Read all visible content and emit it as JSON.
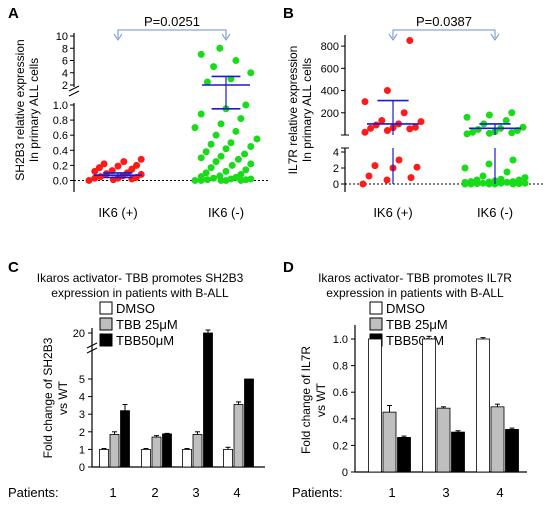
{
  "chart_data": [
    {
      "panel": "A",
      "type": "scatter",
      "ylabel": "SH2B3 relative expression\nIn primary ALL cells",
      "categories": [
        "IK6 (+)",
        "IK6 (-)"
      ],
      "axis_break": true,
      "ylim_lower": [
        -0.1,
        1.0
      ],
      "ylim_upper": [
        2,
        10
      ],
      "yticks_lower": [
        "0.0",
        "0.2",
        "0.4",
        "0.6",
        "0.8",
        "1.0"
      ],
      "yticks_upper": [
        "2",
        "4",
        "6",
        "8",
        "10"
      ],
      "annotation": "P=0.0251",
      "series": [
        {
          "category": "IK6 (+)",
          "color": "#ff1a1a",
          "mean": 0.07,
          "sem_low": 0.04,
          "sem_high": 0.1,
          "values": [
            0.0,
            0.01,
            0.02,
            0.03,
            0.03,
            0.04,
            0.05,
            0.06,
            0.08,
            0.09,
            0.1,
            0.12,
            0.13,
            0.15,
            0.17,
            0.19,
            0.2,
            0.22,
            0.25,
            0.28
          ]
        },
        {
          "category": "IK6 (-)",
          "color": "#1adb1a",
          "mean": 2.0,
          "sem_low": 0.95,
          "sem_high": 3.4,
          "values": [
            0.0,
            0.0,
            0.0,
            0.0,
            0.0,
            0.01,
            0.01,
            0.02,
            0.02,
            0.03,
            0.04,
            0.05,
            0.06,
            0.08,
            0.1,
            0.12,
            0.14,
            0.17,
            0.2,
            0.22,
            0.25,
            0.28,
            0.3,
            0.32,
            0.35,
            0.38,
            0.42,
            0.45,
            0.48,
            0.5,
            0.55,
            0.6,
            0.65,
            0.7,
            0.75,
            0.82,
            0.88,
            0.95,
            1.0,
            2.5,
            3.0,
            4.0,
            5.0,
            6.0,
            7.0,
            8.0
          ]
        }
      ]
    },
    {
      "panel": "B",
      "type": "scatter",
      "ylabel": "IL7R relative expression\nIn primary ALL cells",
      "categories": [
        "IK6 (+)",
        "IK6 (-)"
      ],
      "axis_break": true,
      "ylim_lower": [
        -0.5,
        4.5
      ],
      "ylim_upper": [
        0,
        900
      ],
      "yticks_lower": [
        "0",
        "2",
        "4"
      ],
      "yticks_upper": [
        "200",
        "400",
        "600",
        "800"
      ],
      "annotation": "P=0.0387",
      "series": [
        {
          "category": "IK6 (+)",
          "color": "#ff1a1a",
          "mean": 100,
          "sem_low": 0,
          "sem_high": 310,
          "values_lower": [
            0.0,
            0.5,
            0.8,
            1.0,
            2.0,
            2.1,
            2.3,
            3.0
          ],
          "values_upper": [
            25,
            40,
            55,
            60,
            65,
            70,
            90,
            100,
            120,
            130,
            200,
            300,
            400,
            850
          ]
        },
        {
          "category": "IK6 (-)",
          "color": "#1adb1a",
          "mean": 60,
          "sem_low": 0,
          "sem_high": 100,
          "values_lower": [
            0.0,
            0.0,
            0.0,
            0.0,
            0.0,
            0.05,
            0.05,
            0.1,
            0.1,
            0.1,
            0.2,
            0.2,
            0.25,
            0.3,
            0.3,
            0.4,
            0.5,
            0.5,
            0.6,
            0.8,
            1.0,
            1.5,
            2.0,
            2.5,
            3.0
          ],
          "values_upper": [
            10,
            15,
            20,
            25,
            30,
            40,
            50,
            60,
            70,
            100,
            130,
            160,
            180,
            200
          ]
        }
      ]
    },
    {
      "panel": "C",
      "type": "bar",
      "title": "Ikaros activator- TBB  promotes SH2B3\nexpression in patients with B-ALL",
      "ylabel": "Fold change of SH2B3\nvs WT",
      "xlabel_prefix": "Patients:",
      "categories": [
        "1",
        "2",
        "3",
        "4"
      ],
      "axis_break": true,
      "yticks": [
        "0",
        "1",
        "2",
        "3",
        "4",
        "5",
        "20"
      ],
      "legend": [
        "DMSO",
        "TBB 25μM",
        "TBB50μM"
      ],
      "series": [
        {
          "name": "DMSO",
          "color": "#ffffff",
          "values": [
            1.0,
            1.0,
            1.0,
            1.0
          ],
          "errors": [
            0.05,
            0.05,
            0.05,
            0.12
          ]
        },
        {
          "name": "TBB 25μM",
          "color": "#bfbfbf",
          "values": [
            1.85,
            1.7,
            1.85,
            3.55
          ],
          "errors": [
            0.15,
            0.08,
            0.15,
            0.15
          ]
        },
        {
          "name": "TBB50μM",
          "color": "#000000",
          "values": [
            3.2,
            1.88,
            20.0,
            5.0
          ],
          "errors": [
            0.35,
            0.03,
            0.3,
            0.0
          ]
        }
      ]
    },
    {
      "panel": "D",
      "type": "bar",
      "title": "Ikaros activator- TBB  promotes IL7R\nexpression in patients with B-ALL",
      "ylabel": "Fold change of IL7R\nvs WT",
      "xlabel_prefix": "Patients:",
      "categories": [
        "1",
        "3",
        "4"
      ],
      "ylim": [
        0,
        1.1
      ],
      "yticks": [
        "0",
        "0.2",
        "0.4",
        "0.6",
        "0.8",
        "1.0"
      ],
      "legend": [
        "DMSO",
        "TBB 25μM",
        "TBB50μM"
      ],
      "series": [
        {
          "name": "DMSO",
          "color": "#ffffff",
          "values": [
            1.0,
            1.0,
            1.0
          ],
          "errors": [
            0.02,
            0.02,
            0.01
          ]
        },
        {
          "name": "TBB 25μM",
          "color": "#bfbfbf",
          "values": [
            0.45,
            0.48,
            0.49
          ],
          "errors": [
            0.05,
            0.01,
            0.02
          ]
        },
        {
          "name": "TBB50μM",
          "color": "#000000",
          "values": [
            0.26,
            0.3,
            0.32
          ],
          "errors": [
            0.01,
            0.01,
            0.01
          ]
        }
      ]
    }
  ]
}
